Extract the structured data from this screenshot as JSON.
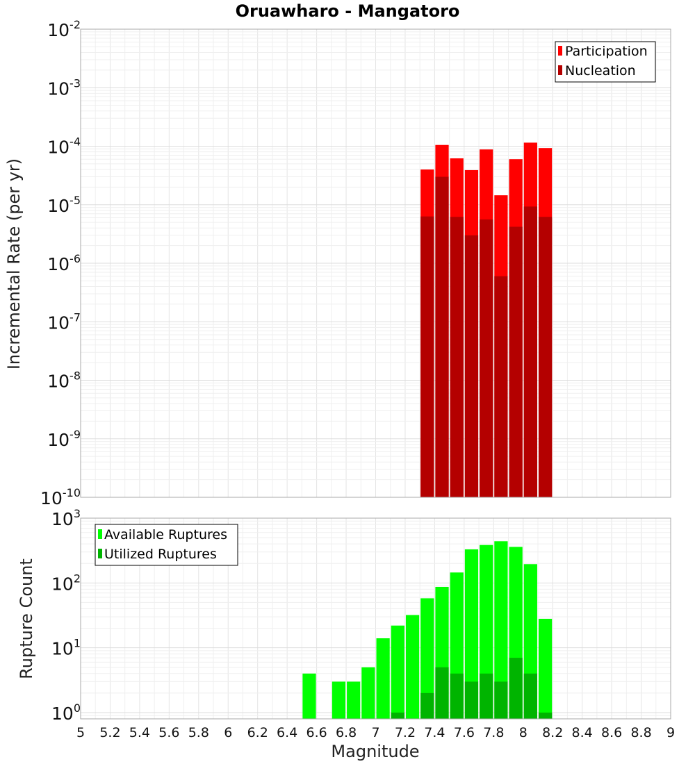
{
  "chart_data": [
    {
      "type": "bar",
      "title": "Oruawharo - Mangatoro",
      "xlabel": "Magnitude",
      "ylabel": "Incremental Rate (per yr)",
      "yscale": "log",
      "xlim": [
        5,
        9
      ],
      "ylim": [
        1e-10,
        0.01
      ],
      "y_ticks": [
        {
          "base": "10",
          "exp": "-10",
          "value": 1e-10
        },
        {
          "base": "10",
          "exp": "-9",
          "value": 1e-09
        },
        {
          "base": "10",
          "exp": "-8",
          "value": 1e-08
        },
        {
          "base": "10",
          "exp": "-7",
          "value": 1e-07
        },
        {
          "base": "10",
          "exp": "-6",
          "value": 1e-06
        },
        {
          "base": "10",
          "exp": "-5",
          "value": 1e-05
        },
        {
          "base": "10",
          "exp": "-4",
          "value": 0.0001
        },
        {
          "base": "10",
          "exp": "-3",
          "value": 0.001
        },
        {
          "base": "10",
          "exp": "-2",
          "value": 0.01
        }
      ],
      "grid": true,
      "legend_position": "top-right",
      "x": [
        7.35,
        7.45,
        7.55,
        7.65,
        7.75,
        7.85,
        7.95,
        8.05,
        8.15
      ],
      "series": [
        {
          "name": "Participation",
          "color": "#ff0000",
          "values": [
            4e-05,
            0.000105,
            6.2e-05,
            3.9e-05,
            8.8e-05,
            1.45e-05,
            6e-05,
            0.000115,
            9.3e-05
          ]
        },
        {
          "name": "Nucleation",
          "color": "#b40000",
          "values": [
            6.3e-06,
            3e-05,
            6.2e-06,
            3e-06,
            5.6e-06,
            6e-07,
            4.2e-06,
            9.3e-06,
            6.2e-06
          ]
        }
      ]
    },
    {
      "type": "bar",
      "xlabel": "Magnitude",
      "ylabel": "Rupture Count",
      "yscale": "log",
      "xlim": [
        5,
        9
      ],
      "ylim": [
        0.8,
        1000
      ],
      "y_ticks": [
        {
          "base": "10",
          "exp": "0",
          "value": 1
        },
        {
          "base": "10",
          "exp": "1",
          "value": 10
        },
        {
          "base": "10",
          "exp": "2",
          "value": 100
        },
        {
          "base": "10",
          "exp": "3",
          "value": 1000
        }
      ],
      "x_ticks": [
        "5",
        "5.2",
        "5.4",
        "5.6",
        "5.8",
        "6",
        "6.2",
        "6.4",
        "6.6",
        "6.8",
        "7",
        "7.2",
        "7.4",
        "7.6",
        "7.8",
        "8",
        "8.2",
        "8.4",
        "8.6",
        "8.8",
        "9"
      ],
      "grid": true,
      "legend_position": "top-left",
      "x": [
        6.55,
        6.75,
        6.85,
        6.95,
        7.05,
        7.15,
        7.25,
        7.35,
        7.45,
        7.55,
        7.65,
        7.75,
        7.85,
        7.95,
        8.05,
        8.15
      ],
      "series": [
        {
          "name": "Available Ruptures",
          "color": "#00ff00",
          "values": [
            4,
            3,
            3,
            5,
            14,
            22,
            32,
            58,
            87,
            145,
            330,
            385,
            440,
            360,
            195,
            28
          ]
        },
        {
          "name": "Utilized Ruptures",
          "color": "#00b400",
          "values": [
            0,
            0,
            0,
            0,
            0,
            1,
            0,
            2,
            5,
            4,
            3,
            4,
            3,
            7,
            4,
            1
          ]
        }
      ]
    }
  ]
}
